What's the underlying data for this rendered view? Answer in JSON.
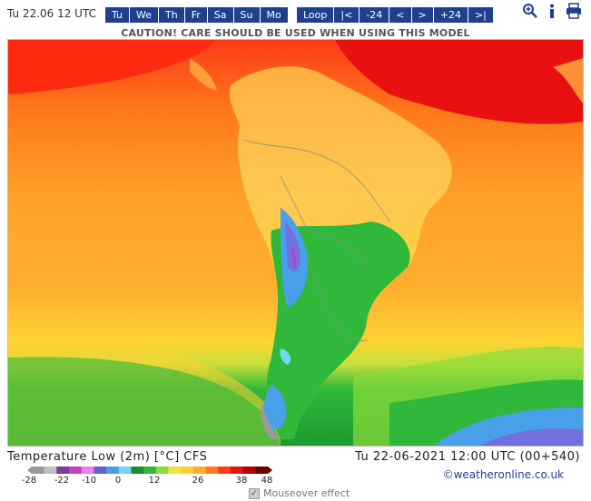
{
  "header": {
    "date_label": "Tu 22.06 12 UTC",
    "days": [
      "Tu",
      "We",
      "Th",
      "Fr",
      "Sa",
      "Su",
      "Mo"
    ],
    "nav": [
      "Loop",
      "|<",
      "-24",
      "<",
      ">",
      "+24",
      ">|"
    ],
    "icons": [
      "zoom-icon",
      "info-icon",
      "print-icon"
    ]
  },
  "caution": "CAUTION! CARE SHOULD BE USED WHEN USING THIS MODEL",
  "map": {
    "region": "South America",
    "field": "Temperature Low (2m)"
  },
  "legend": {
    "title": "Temperature Low (2m) [°C] CFS",
    "time": "Tu 22-06-2021 12:00 UTC (00+540)",
    "ticks": [
      "-28",
      "-22",
      "-10",
      "0",
      "12",
      "26",
      "38",
      "48"
    ],
    "colors": [
      "#9a9a9a",
      "#c0c0c0",
      "#7a3a9a",
      "#c040c0",
      "#e880e8",
      "#6060d0",
      "#4aa0e8",
      "#70d8f0",
      "#1e8c2c",
      "#2fb83a",
      "#8ddc3a",
      "#e8e83a",
      "#ffcc33",
      "#ffaa33",
      "#ff7a1a",
      "#ff3b1a",
      "#e81010",
      "#b00000",
      "#6a0000"
    ]
  },
  "copyright": "©weatheronline.co.uk",
  "mouseover": {
    "label": "Mouseover effect",
    "checked": true
  }
}
